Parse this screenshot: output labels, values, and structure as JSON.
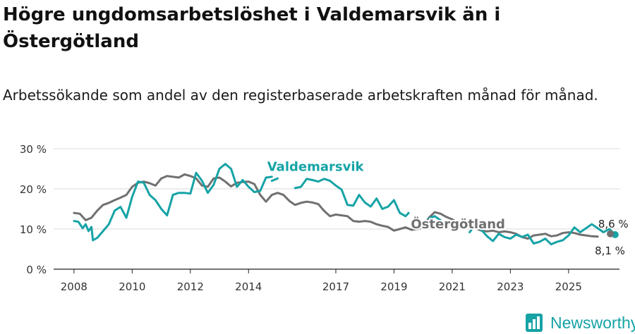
{
  "title": "Högre ungdomsarbetslöshet i Valdemarsvik än i Östergötland",
  "subtitle": "Arbetssökande som andel av den registerbaserade arbetskraften månad för månad.",
  "brand": {
    "name": "Newsworthy",
    "color": "#16a3a6"
  },
  "chart_data": {
    "type": "line",
    "xlim": [
      2007.3,
      2026.75
    ],
    "ylim": [
      0,
      30
    ],
    "x_ticks": [
      2008,
      2010,
      2012,
      2014,
      2017,
      2019,
      2021,
      2023,
      2025
    ],
    "y_ticks": [
      {
        "value": 0,
        "label": "0 %"
      },
      {
        "value": 10,
        "label": "10 %"
      },
      {
        "value": 20,
        "label": "20 %"
      },
      {
        "value": 30,
        "label": "30 %"
      }
    ],
    "grid": true,
    "series": [
      {
        "name": "Östergötland",
        "color": "#707070",
        "end_label": "8,1 %",
        "points": [
          [
            2008.0,
            14
          ],
          [
            2008.2,
            13.8
          ],
          [
            2008.4,
            12.2
          ],
          [
            2008.6,
            12.8
          ],
          [
            2008.8,
            14.6
          ],
          [
            2009.0,
            16
          ],
          [
            2009.2,
            16.5
          ],
          [
            2009.4,
            17.2
          ],
          [
            2009.6,
            17.8
          ],
          [
            2009.8,
            18.5
          ],
          [
            2010.0,
            20.5
          ],
          [
            2010.2,
            21.5
          ],
          [
            2010.4,
            21.8
          ],
          [
            2010.6,
            21.4
          ],
          [
            2010.8,
            20.8
          ],
          [
            2011.0,
            22.6
          ],
          [
            2011.2,
            23.2
          ],
          [
            2011.4,
            23.0
          ],
          [
            2011.6,
            22.8
          ],
          [
            2011.8,
            23.6
          ],
          [
            2012.0,
            23.2
          ],
          [
            2012.2,
            22.6
          ],
          [
            2012.4,
            20.8
          ],
          [
            2012.6,
            20.5
          ],
          [
            2012.8,
            22.6
          ],
          [
            2013.0,
            22.8
          ],
          [
            2013.2,
            21.8
          ],
          [
            2013.4,
            20.6
          ],
          [
            2013.6,
            21.5
          ],
          [
            2013.8,
            21.7
          ],
          [
            2014.0,
            21.8
          ],
          [
            2014.2,
            21.2
          ],
          [
            2014.4,
            18.5
          ],
          [
            2014.6,
            16.8
          ],
          [
            2014.8,
            18.5
          ],
          [
            2015.0,
            19.0
          ],
          [
            2015.2,
            18.5
          ],
          [
            2015.4,
            17.0
          ],
          [
            2015.6,
            16.0
          ],
          [
            2015.8,
            16.5
          ],
          [
            2016.0,
            16.8
          ],
          [
            2016.2,
            16.6
          ],
          [
            2016.4,
            16.2
          ],
          [
            2016.6,
            14.5
          ],
          [
            2016.8,
            13.2
          ],
          [
            2017.0,
            13.6
          ],
          [
            2017.2,
            13.4
          ],
          [
            2017.4,
            13.2
          ],
          [
            2017.6,
            12.0
          ],
          [
            2017.8,
            11.8
          ],
          [
            2018.0,
            12.0
          ],
          [
            2018.2,
            11.8
          ],
          [
            2018.4,
            11.2
          ],
          [
            2018.6,
            10.8
          ],
          [
            2018.8,
            10.5
          ],
          [
            2019.0,
            9.6
          ],
          [
            2019.2,
            10.0
          ],
          [
            2019.4,
            10.4
          ],
          [
            2019.6,
            9.8
          ],
          [
            2019.8,
            10.0
          ],
          [
            2020.0,
            10.4
          ],
          [
            2020.2,
            12.8
          ],
          [
            2020.4,
            14.2
          ],
          [
            2020.6,
            13.8
          ],
          [
            2020.8,
            13.0
          ],
          [
            2021.0,
            12.4
          ],
          [
            2021.2,
            11.6
          ],
          [
            2021.4,
            10.6
          ],
          [
            2021.6,
            10.8
          ],
          [
            2021.8,
            10.2
          ],
          [
            2022.0,
            9.6
          ],
          [
            2022.2,
            9.4
          ],
          [
            2022.4,
            9.6
          ],
          [
            2022.6,
            9.2
          ],
          [
            2022.8,
            9.4
          ],
          [
            2023.0,
            9.2
          ],
          [
            2023.2,
            8.8
          ],
          [
            2023.4,
            8.0
          ],
          [
            2023.6,
            7.6
          ],
          [
            2023.8,
            8.4
          ],
          [
            2024.0,
            8.6
          ],
          [
            2024.2,
            8.8
          ],
          [
            2024.4,
            8.2
          ],
          [
            2024.6,
            8.4
          ],
          [
            2024.8,
            9.0
          ],
          [
            2025.0,
            9.2
          ],
          [
            2025.2,
            9.0
          ],
          [
            2025.4,
            8.6
          ],
          [
            2025.6,
            8.4
          ],
          [
            2025.8,
            8.2
          ],
          [
            2026.0,
            8.1
          ]
        ]
      },
      {
        "name": "Valdemarsvik",
        "color": "#16a3a6",
        "end_label": "8,6 %",
        "points": [
          [
            2008.0,
            12
          ],
          [
            2008.15,
            11.8
          ],
          [
            2008.3,
            10.2
          ],
          [
            2008.4,
            11.2
          ],
          [
            2008.5,
            9.5
          ],
          [
            2008.6,
            10.5
          ],
          [
            2008.65,
            7.2
          ],
          [
            2008.8,
            7.8
          ],
          [
            2009.0,
            9.5
          ],
          [
            2009.2,
            11.2
          ],
          [
            2009.4,
            14.6
          ],
          [
            2009.6,
            15.5
          ],
          [
            2009.8,
            12.8
          ],
          [
            2010.0,
            18.0
          ],
          [
            2010.2,
            21.8
          ],
          [
            2010.4,
            21.5
          ],
          [
            2010.6,
            18.5
          ],
          [
            2010.8,
            17.2
          ],
          [
            2011.0,
            15.0
          ],
          [
            2011.2,
            13.4
          ],
          [
            2011.4,
            18.5
          ],
          [
            2011.6,
            19.0
          ],
          [
            2011.8,
            19.0
          ],
          [
            2012.0,
            18.8
          ],
          [
            2012.2,
            24.0
          ],
          [
            2012.4,
            22.0
          ],
          [
            2012.6,
            19.0
          ],
          [
            2012.8,
            21.0
          ],
          [
            2013.0,
            25.0
          ],
          [
            2013.2,
            26.2
          ],
          [
            2013.4,
            25.0
          ],
          [
            2013.6,
            20.5
          ],
          [
            2013.8,
            22.2
          ],
          [
            2014.0,
            20.5
          ],
          [
            2014.2,
            19.2
          ],
          [
            2014.4,
            19.5
          ],
          [
            2014.6,
            22.8
          ],
          [
            2014.8,
            23.0
          ]
        ],
        "segments_extra": [
          [
            [
              2014.8,
              22.0
            ],
            [
              2015.0,
              22.6
            ]
          ],
          [
            [
              2015.6,
              20.2
            ],
            [
              2015.8,
              20.5
            ],
            [
              2016.0,
              22.5
            ],
            [
              2016.2,
              22.2
            ],
            [
              2016.4,
              21.8
            ],
            [
              2016.6,
              22.5
            ],
            [
              2016.8,
              22.0
            ],
            [
              2017.0,
              20.8
            ],
            [
              2017.2,
              19.8
            ],
            [
              2017.4,
              16.0
            ],
            [
              2017.6,
              15.8
            ],
            [
              2017.8,
              18.5
            ],
            [
              2018.0,
              16.6
            ],
            [
              2018.2,
              15.6
            ],
            [
              2018.4,
              17.6
            ],
            [
              2018.6,
              15.0
            ],
            [
              2018.8,
              15.6
            ],
            [
              2019.0,
              17.2
            ],
            [
              2019.2,
              14.0
            ],
            [
              2019.4,
              13.2
            ],
            [
              2019.5,
              14.0
            ]
          ],
          [
            [
              2020.2,
              12.6
            ],
            [
              2020.4,
              13.2
            ],
            [
              2020.6,
              12.2
            ]
          ],
          [
            [
              2021.6,
              9.2
            ],
            [
              2021.8,
              11.2
            ],
            [
              2022.0,
              9.8
            ],
            [
              2022.2,
              8.2
            ],
            [
              2022.4,
              7.0
            ],
            [
              2022.6,
              8.8
            ],
            [
              2022.8,
              8.0
            ],
            [
              2023.0,
              7.6
            ],
            [
              2023.2,
              8.6
            ],
            [
              2023.4,
              8.0
            ],
            [
              2023.6,
              8.6
            ],
            [
              2023.8,
              6.4
            ],
            [
              2024.0,
              6.8
            ],
            [
              2024.2,
              7.6
            ],
            [
              2024.4,
              6.2
            ],
            [
              2024.6,
              6.8
            ],
            [
              2024.8,
              7.2
            ],
            [
              2025.0,
              8.4
            ],
            [
              2025.2,
              10.4
            ],
            [
              2025.4,
              9.2
            ],
            [
              2025.6,
              10.2
            ],
            [
              2025.8,
              11.2
            ],
            [
              2026.0,
              10.2
            ],
            [
              2026.2,
              9.2
            ],
            [
              2026.4,
              10.0
            ],
            [
              2026.6,
              8.6
            ]
          ]
        ]
      }
    ],
    "annotations": [
      {
        "text": "Valdemarsvik",
        "series": "Valdemarsvik",
        "x": 2016.3,
        "y": 24.5
      },
      {
        "text": "Östergötland",
        "series": "Östergötland",
        "x": 2021.2,
        "y": 10.2
      }
    ]
  }
}
